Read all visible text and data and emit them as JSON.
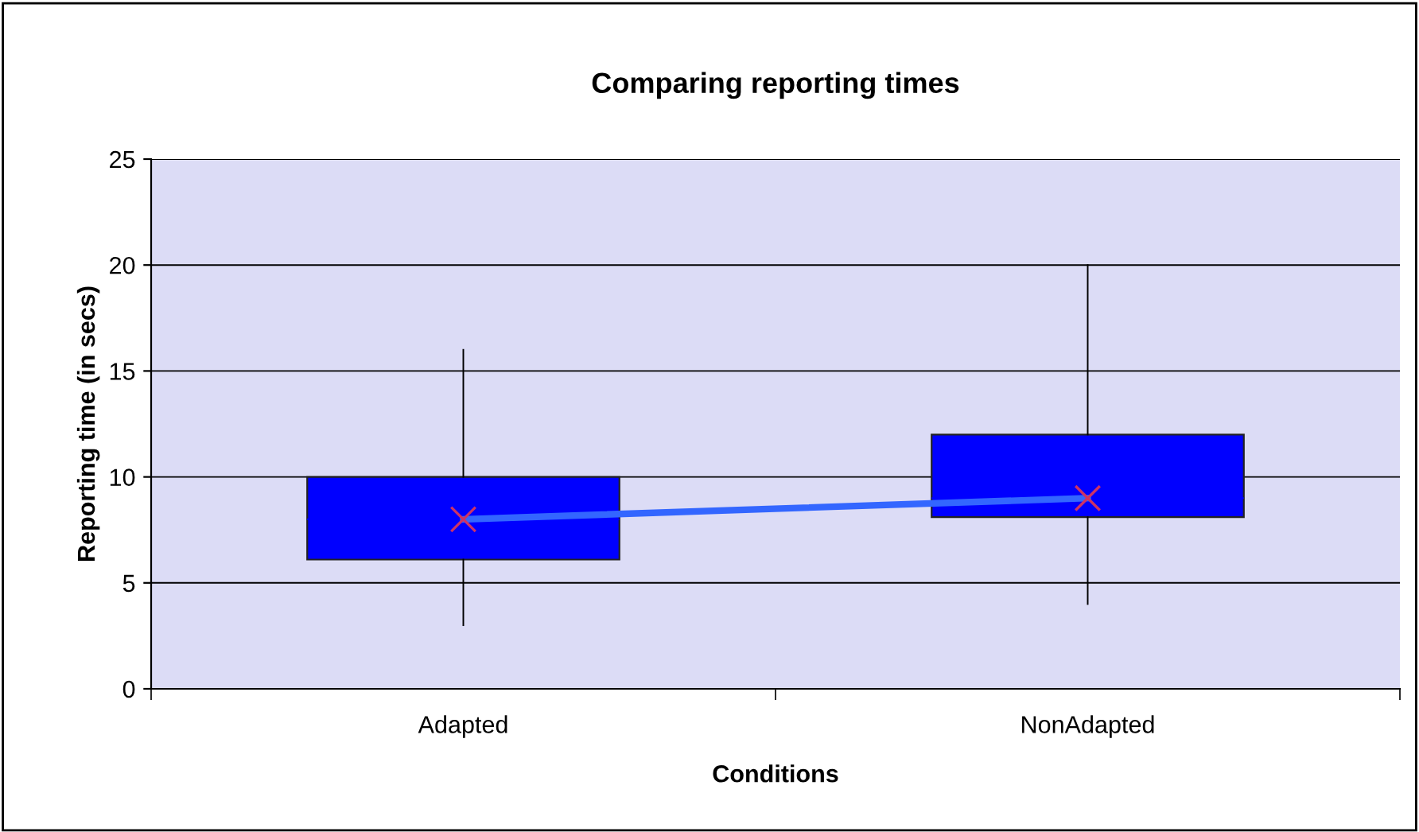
{
  "chart_data": {
    "type": "box",
    "title": "Comparing reporting times",
    "xlabel": "Conditions",
    "ylabel": "Reporting time (in secs)",
    "categories": [
      "Adapted",
      "NonAdapted"
    ],
    "boxes": [
      {
        "low": 3,
        "q1": 6.1,
        "median": 8,
        "q3": 10,
        "high": 16
      },
      {
        "low": 4,
        "q1": 8.1,
        "median": 9,
        "q3": 12,
        "high": 20
      }
    ],
    "color": "#0000ff",
    "series": [
      {
        "type": "line",
        "color": "#3366ff",
        "values": [
          8,
          9
        ],
        "marker": "cross"
      }
    ],
    "ylim": [
      0,
      25
    ],
    "yticks": [
      0,
      5,
      10,
      15,
      20,
      25
    ],
    "grid": "y"
  }
}
